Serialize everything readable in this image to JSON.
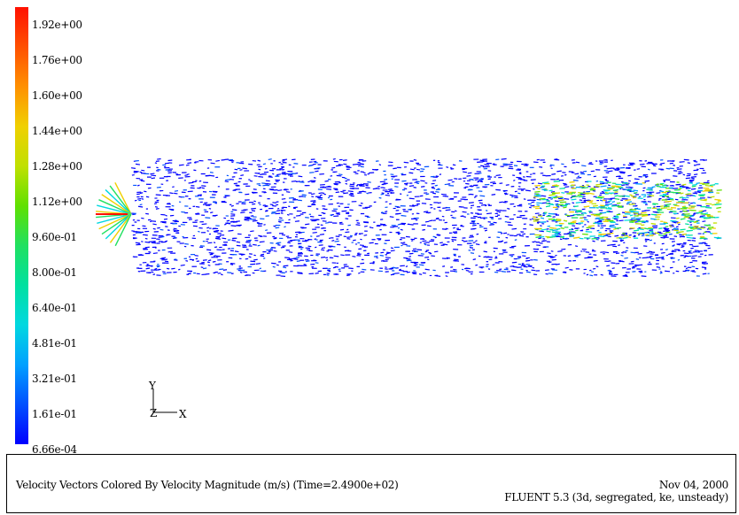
{
  "colorbar": {
    "labels": [
      "1.92e+00",
      "1.76e+00",
      "1.60e+00",
      "1.44e+00",
      "1.28e+00",
      "1.12e+00",
      "9.60e-01",
      "8.00e-01",
      "6.40e-01",
      "4.81e-01",
      "3.21e-01",
      "1.61e-01",
      "6.66e-04"
    ],
    "gradient_colors": [
      "#0000ff",
      "#0050ff",
      "#00a0ff",
      "#00d8e0",
      "#00e0a0",
      "#20e060",
      "#60e000",
      "#c0e000",
      "#f0d000",
      "#ff9000",
      "#ff5000",
      "#ff1000"
    ]
  },
  "axes": {
    "y_label": "Y",
    "z_label": "Z",
    "x_label": "X"
  },
  "footer": {
    "caption": "Velocity Vectors Colored By Velocity Magnitude (m/s)  (Time=2.4900e+02)",
    "date": "Nov 04, 2000",
    "solver": "FLUENT 5.3 (3d, segregated, ke, unsteady)"
  }
}
